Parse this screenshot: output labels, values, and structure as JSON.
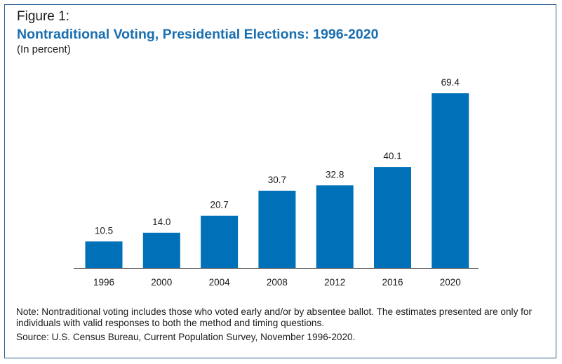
{
  "figure_label": "Figure 1:",
  "title": "Nontraditional Voting, Presidential Elections: 1996-2020",
  "subtitle": "(In percent)",
  "note": "Note: Nontraditional voting includes those who voted early and/or by absentee ballot. The estimates presented are only for individuals with valid responses to both the method and timing questions.",
  "source": "Source: U.S. Census Bureau, Current Population Survey, November 1996-2020.",
  "colors": {
    "bar": "#0070b9",
    "title": "#1a6fb0",
    "border": "#2e5f8f",
    "axis": "#333333"
  },
  "chart_data": {
    "type": "bar",
    "title": "Nontraditional Voting, Presidential Elections: 1996-2020",
    "ylabel": "(In percent)",
    "categories": [
      "1996",
      "2000",
      "2004",
      "2008",
      "2012",
      "2016",
      "2020"
    ],
    "values": [
      10.5,
      14.0,
      20.7,
      30.7,
      32.8,
      40.1,
      69.4
    ],
    "data_labels": [
      "10.5",
      "14.0",
      "20.7",
      "30.7",
      "32.8",
      "40.1",
      "69.4"
    ],
    "ylim": [
      0,
      69.4
    ],
    "grid": false,
    "legend": "none"
  }
}
